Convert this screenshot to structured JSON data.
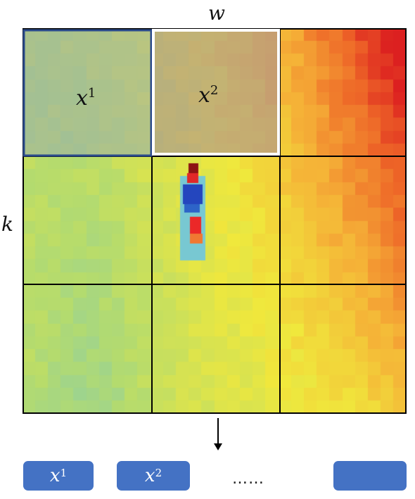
{
  "axes": {
    "width_label": "w",
    "height_label": "k"
  },
  "patches": [
    {
      "base": "x",
      "index": "1"
    },
    {
      "base": "x",
      "index": "2"
    }
  ],
  "tokens": [
    {
      "base": "x",
      "index": "1"
    },
    {
      "base": "x",
      "index": "2"
    },
    {
      "base": "",
      "index": ""
    }
  ],
  "ellipsis": "……",
  "grid": {
    "rows": 3,
    "cols": 3
  },
  "colors": {
    "token_fill": "#4472c4",
    "patch1_border": "#2b4b8c",
    "patch2_border": "#ffffff",
    "grid_line": "#000000"
  }
}
